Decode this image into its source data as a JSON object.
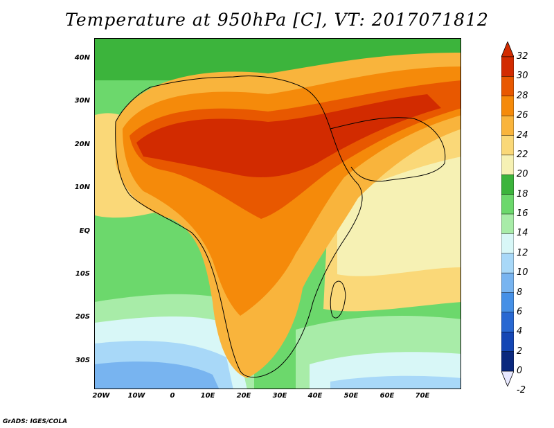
{
  "title": "Temperature at 950hPa [C], VT: 2017071812",
  "footer": "GrADS: IGES/COLA",
  "map": {
    "lon_range": [
      -22,
      80
    ],
    "lat_range": [
      -37,
      45
    ],
    "lat_ticks": [
      {
        "value": 40,
        "label": "40N"
      },
      {
        "value": 30,
        "label": "30N"
      },
      {
        "value": 20,
        "label": "20N"
      },
      {
        "value": 10,
        "label": "10N"
      },
      {
        "value": 0,
        "label": "EQ"
      },
      {
        "value": -10,
        "label": "10S"
      },
      {
        "value": -20,
        "label": "20S"
      },
      {
        "value": -30,
        "label": "30S"
      }
    ],
    "lon_ticks": [
      {
        "value": -20,
        "label": "20W"
      },
      {
        "value": -10,
        "label": "10W"
      },
      {
        "value": 0,
        "label": "0"
      },
      {
        "value": 10,
        "label": "10E"
      },
      {
        "value": 20,
        "label": "20E"
      },
      {
        "value": 30,
        "label": "30E"
      },
      {
        "value": 40,
        "label": "40E"
      },
      {
        "value": 50,
        "label": "50E"
      },
      {
        "value": 60,
        "label": "60E"
      },
      {
        "value": 70,
        "label": "70E"
      }
    ]
  },
  "colorbar": {
    "levels": [
      "32",
      "30",
      "28",
      "26",
      "24",
      "22",
      "20",
      "18",
      "16",
      "14",
      "12",
      "10",
      "8",
      "6",
      "4",
      "2",
      "0",
      "-2"
    ],
    "colors": [
      "#a50000",
      "#d22b00",
      "#e85800",
      "#f58a0a",
      "#f9b43c",
      "#fad878",
      "#f6f1b4",
      "#3cb43c",
      "#6cd86c",
      "#a8eca8",
      "#d8f7f7",
      "#a8d8f8",
      "#78b4f0",
      "#4690e6",
      "#2868d2",
      "#1446b4",
      "#0a287e",
      "#001050"
    ],
    "over_color": "#d22b00",
    "under_color": "#e8e8ff"
  }
}
